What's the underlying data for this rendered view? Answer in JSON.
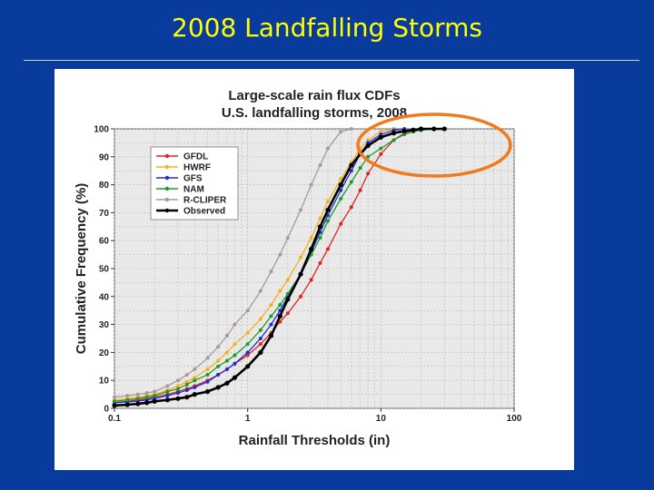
{
  "slide": {
    "title": "2008 Landfalling Storms"
  },
  "colors": {
    "background": "#083b9c",
    "title": "#ffff00",
    "highlight_ellipse": "#f07a1e"
  },
  "chart_data": {
    "type": "line",
    "title": "Large-scale rain flux CDFs",
    "subtitle": "U.S. landfalling storms, 2008",
    "xlabel": "Rainfall Thresholds (in)",
    "ylabel": "Cumulative Frequency (%)",
    "xscale": "log",
    "xlim": [
      0.1,
      100
    ],
    "ylim": [
      0,
      100
    ],
    "x_ticks": [
      "0.1",
      "1",
      "10",
      "100"
    ],
    "y_ticks": [
      "0",
      "10",
      "20",
      "30",
      "40",
      "50",
      "60",
      "70",
      "80",
      "90",
      "100"
    ],
    "grid": true,
    "legend_position": "top-left",
    "annotation": "highlight ellipse around upper tails near 100%",
    "x": [
      0.1,
      0.125,
      0.15,
      0.175,
      0.2,
      0.25,
      0.3,
      0.35,
      0.4,
      0.5,
      0.6,
      0.7,
      0.8,
      1.0,
      1.25,
      1.5,
      1.75,
      2.0,
      2.5,
      3.0,
      3.5,
      4.0,
      5.0,
      6.0,
      7.0,
      8.0,
      10.0,
      12.5,
      15.0,
      17.5,
      20.0,
      25.0,
      30.0
    ],
    "series": [
      {
        "name": "GFDL",
        "color": "#e0241c",
        "y": [
          2,
          2.5,
          3,
          3.5,
          4,
          5,
          6,
          7,
          8,
          10,
          12,
          14,
          16,
          19,
          23,
          27,
          31,
          34,
          40,
          46,
          52,
          57,
          66,
          72,
          78,
          84,
          91,
          96,
          98.5,
          99.5,
          100,
          null,
          null
        ]
      },
      {
        "name": "HWRF",
        "color": "#f2b21e",
        "y": [
          3,
          3.5,
          4,
          4.5,
          5,
          6.5,
          8,
          9.5,
          11,
          14,
          17,
          20,
          23,
          27,
          32,
          37,
          42,
          46,
          54,
          61,
          68,
          74,
          82,
          88,
          93,
          96,
          99,
          100,
          null,
          null,
          null,
          null,
          null
        ]
      },
      {
        "name": "GFS",
        "color": "#1f2fcf",
        "y": [
          2,
          2.3,
          2.6,
          3,
          3.5,
          4.5,
          5.5,
          6.5,
          7.5,
          9.5,
          12,
          14,
          16,
          20,
          25,
          30,
          35,
          40,
          48,
          56,
          63,
          69,
          78,
          85,
          91,
          95,
          98,
          99.5,
          100,
          null,
          null,
          null,
          null
        ]
      },
      {
        "name": "NAM",
        "color": "#1e9a2e",
        "y": [
          2.5,
          3,
          3.5,
          4,
          4.5,
          6,
          7,
          8.5,
          10,
          12,
          15,
          17,
          19,
          23,
          28,
          33,
          37,
          41,
          48,
          55,
          61,
          67,
          75,
          81,
          86,
          90,
          93,
          96,
          98,
          99,
          99.5,
          100,
          null
        ]
      },
      {
        "name": "R-CLIPER",
        "color": "#a89a98",
        "y": [
          4,
          4.5,
          5,
          5.5,
          6,
          8,
          10,
          12,
          14,
          18,
          22,
          26,
          30,
          35,
          42,
          49,
          55,
          61,
          71,
          80,
          87,
          93,
          99,
          100,
          null,
          null,
          null,
          null,
          null,
          null,
          null,
          null,
          null
        ]
      },
      {
        "name": "Observed",
        "color": "#000000",
        "y": [
          1,
          1.3,
          1.6,
          2,
          2.5,
          3,
          3.5,
          4,
          5,
          6,
          7.5,
          9,
          11,
          15,
          20,
          26,
          33,
          39,
          48,
          57,
          65,
          71,
          80,
          87,
          91,
          94,
          97,
          98.5,
          99.2,
          99.6,
          100,
          100,
          100
        ]
      }
    ]
  }
}
